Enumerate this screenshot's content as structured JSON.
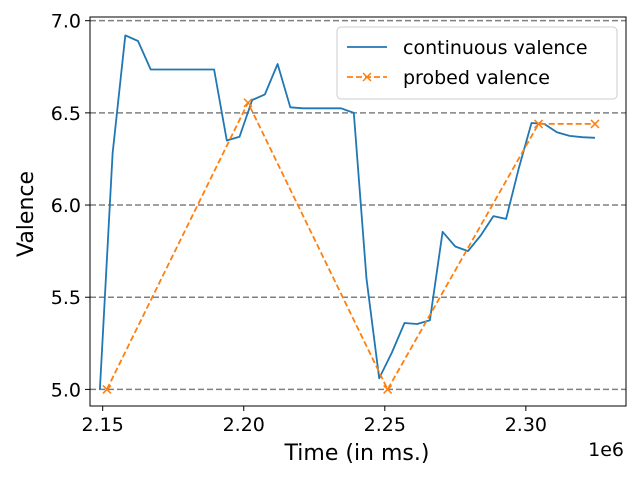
{
  "chart_data": {
    "type": "line",
    "title": "",
    "xlabel": "Time (in ms.)",
    "ylabel": "Valence",
    "x_offset_label": "1e6",
    "xlim": [
      2.1455,
      2.3355
    ],
    "ylim": [
      4.91,
      7.02
    ],
    "x_ticks": [
      {
        "value": 2.15,
        "label": "2.15"
      },
      {
        "value": 2.2,
        "label": "2.20"
      },
      {
        "value": 2.25,
        "label": "2.25"
      },
      {
        "value": 2.3,
        "label": "2.30"
      }
    ],
    "y_ticks": [
      {
        "value": 5.0,
        "label": "5.0"
      },
      {
        "value": 5.5,
        "label": "5.5"
      },
      {
        "value": 6.0,
        "label": "6.0"
      },
      {
        "value": 6.5,
        "label": "6.5"
      },
      {
        "value": 7.0,
        "label": "7.0"
      }
    ],
    "grid": {
      "axis": "y",
      "style": "dashed",
      "color": "#808080"
    },
    "legend": {
      "placement": "top-right"
    },
    "series": [
      {
        "name": "continuous valence",
        "color": "#1f77b4",
        "style": "solid",
        "marker": "none",
        "points": [
          [
            2.149,
            5.0
          ],
          [
            2.1535,
            6.28
          ],
          [
            2.158,
            6.92
          ],
          [
            2.1625,
            6.89
          ],
          [
            2.167,
            6.735
          ],
          [
            2.1715,
            6.735
          ],
          [
            2.176,
            6.735
          ],
          [
            2.1805,
            6.735
          ],
          [
            2.185,
            6.735
          ],
          [
            2.1895,
            6.735
          ],
          [
            2.194,
            6.35
          ],
          [
            2.1985,
            6.37
          ],
          [
            2.203,
            6.57
          ],
          [
            2.2075,
            6.6
          ],
          [
            2.212,
            6.765
          ],
          [
            2.2165,
            6.53
          ],
          [
            2.221,
            6.525
          ],
          [
            2.2255,
            6.525
          ],
          [
            2.23,
            6.525
          ],
          [
            2.2345,
            6.525
          ],
          [
            2.239,
            6.5
          ],
          [
            2.2435,
            5.6
          ],
          [
            2.248,
            5.06
          ],
          [
            2.2525,
            5.2
          ],
          [
            2.257,
            5.36
          ],
          [
            2.2615,
            5.355
          ],
          [
            2.266,
            5.375
          ],
          [
            2.2705,
            5.855
          ],
          [
            2.275,
            5.775
          ],
          [
            2.2795,
            5.75
          ],
          [
            2.284,
            5.835
          ],
          [
            2.2885,
            5.94
          ],
          [
            2.293,
            5.925
          ],
          [
            2.2975,
            6.2
          ],
          [
            2.302,
            6.445
          ],
          [
            2.3065,
            6.44
          ],
          [
            2.311,
            6.395
          ],
          [
            2.3155,
            6.375
          ],
          [
            2.32,
            6.368
          ],
          [
            2.3245,
            6.365
          ]
        ]
      },
      {
        "name": "probed valence",
        "color": "#ff7f0e",
        "style": "dashed",
        "marker": "x",
        "points": [
          [
            2.1515,
            5.0
          ],
          [
            2.2015,
            6.555
          ],
          [
            2.251,
            5.0
          ],
          [
            2.3045,
            6.44
          ],
          [
            2.3245,
            6.44
          ]
        ]
      }
    ]
  }
}
